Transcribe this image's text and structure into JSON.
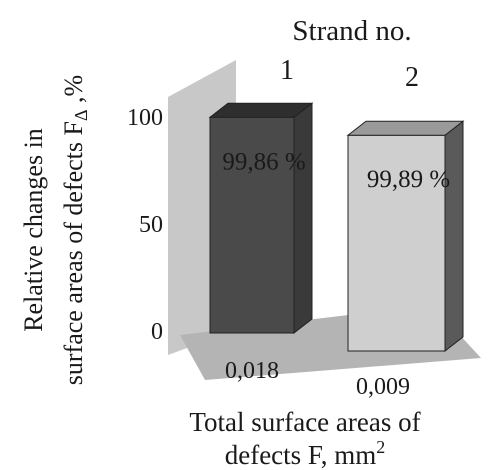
{
  "chart_data": {
    "type": "bar",
    "style": "3d",
    "legend_title": "Strand no.",
    "categories": [
      "0,018",
      "0,009"
    ],
    "series_labels": [
      "1",
      "2"
    ],
    "values": [
      99.86,
      99.89
    ],
    "data_labels": [
      "99,86 %",
      "99,89 %"
    ],
    "ylabel_line1": "Relative changes in",
    "ylabel_line2": "surface areas of defects F",
    "ylabel_sub": "Δ",
    "ylabel_unit": " ,%",
    "xlabel_line1": "Total surface areas of",
    "xlabel_line2": "defects  F, mm",
    "xlabel_sup": "2",
    "yticks": [
      "0",
      "50",
      "100"
    ],
    "ytick_values": [
      0,
      50,
      100
    ],
    "ylim": [
      0,
      130
    ],
    "grid": false,
    "colors": {
      "bar1_front": "#4a4a4a",
      "bar1_top": "#2e2e2e",
      "bar1_side": "#3a3a3a",
      "bar2_front": "#cfcfcf",
      "bar2_top": "#9a9a9a",
      "bar2_side": "#5a5a5a",
      "back_wall": "#c8c8c8",
      "floor": "#b4b4b4"
    }
  }
}
